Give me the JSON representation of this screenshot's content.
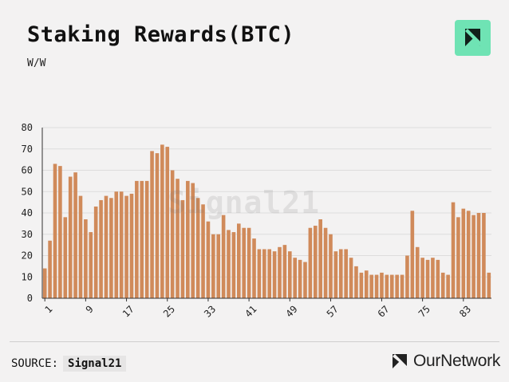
{
  "header": {
    "title": "Staking Rewards(BTC)",
    "subtitle": "W/W"
  },
  "watermark": "Signal21",
  "footer": {
    "source_label": "SOURCE:",
    "source_name": "Signal21",
    "brand": "OurNetwork"
  },
  "colors": {
    "bar": "#d08a5a",
    "logo_tile": "#6fe3b4",
    "grid": "#dddddd"
  },
  "chart_data": {
    "type": "bar",
    "x_tick_labels": [
      "1",
      "9",
      "17",
      "25",
      "33",
      "41",
      "49",
      "57",
      "67",
      "75",
      "83"
    ],
    "ylim": [
      0,
      80
    ],
    "y_ticks": [
      0,
      10,
      20,
      30,
      40,
      50,
      60,
      70,
      80
    ],
    "grid": true,
    "values": [
      14,
      27,
      63,
      62,
      38,
      57,
      59,
      48,
      37,
      31,
      43,
      46,
      48,
      47,
      50,
      50,
      48,
      49,
      55,
      55,
      55,
      69,
      68,
      72,
      71,
      60,
      56,
      46,
      55,
      54,
      47,
      44,
      36,
      30,
      30,
      39,
      32,
      31,
      35,
      33,
      33,
      28,
      23,
      23,
      23,
      22,
      24,
      25,
      22,
      19,
      18,
      17,
      33,
      34,
      37,
      33,
      30,
      22,
      23,
      23,
      19,
      15,
      12,
      13,
      11,
      11,
      12,
      11,
      11,
      11,
      11,
      20,
      41,
      24,
      19,
      18,
      19,
      18,
      12,
      11,
      45,
      38,
      42,
      41,
      39,
      40,
      40,
      12
    ]
  }
}
